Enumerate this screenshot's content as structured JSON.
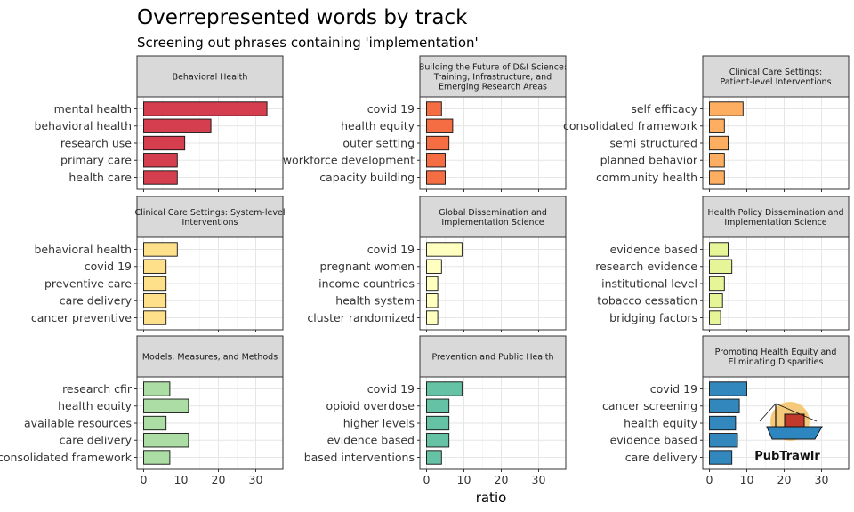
{
  "chart_data": {
    "type": "bar",
    "orientation": "horizontal",
    "title": "Overrepresented words by track",
    "subtitle": "Screening out phrases containing 'implementation'",
    "xlabel": "ratio",
    "xlim": [
      0,
      35
    ],
    "xticks": [
      0,
      10,
      20,
      30
    ],
    "grid": true,
    "facets": [
      {
        "name": "Behavioral Health",
        "color": "#d53e4f",
        "categories": [
          "mental health",
          "behavioral health",
          "research use",
          "primary care",
          "health care"
        ],
        "values": [
          33,
          18,
          11,
          9,
          9
        ]
      },
      {
        "name": "Building the Future of D&I Science: Training, Infrastructure, and Emerging Research Areas",
        "color": "#f46d43",
        "categories": [
          "covid 19",
          "health equity",
          "outer setting",
          "workforce development",
          "capacity building"
        ],
        "values": [
          4,
          7,
          6,
          5,
          5
        ]
      },
      {
        "name": "Clinical Care Settings: Patient-level Interventions",
        "color": "#fdae61",
        "categories": [
          "self efficacy",
          "consolidated framework",
          "semi structured",
          "planned behavior",
          "community health"
        ],
        "values": [
          9,
          4,
          5,
          4,
          4
        ]
      },
      {
        "name": "Clinical Care Settings: System-level Interventions",
        "color": "#fee08b",
        "categories": [
          "behavioral health",
          "covid 19",
          "preventive care",
          "care delivery",
          "cancer preventive"
        ],
        "values": [
          9,
          6,
          6,
          6,
          6
        ]
      },
      {
        "name": "Global Dissemination and Implementation Science",
        "color": "#ffffbf",
        "categories": [
          "covid 19",
          "pregnant women",
          "income countries",
          "health system",
          "cluster randomized"
        ],
        "values": [
          9.5,
          4,
          3,
          3,
          3
        ]
      },
      {
        "name": "Health Policy Dissemination and Implementation Science",
        "color": "#e6f598",
        "categories": [
          "evidence based",
          "research evidence",
          "institutional level",
          "tobacco cessation",
          "bridging factors"
        ],
        "values": [
          5,
          6,
          4,
          3.5,
          3
        ]
      },
      {
        "name": "Models, Measures, and Methods",
        "color": "#abdda4",
        "categories": [
          "research cfir",
          "health equity",
          "available resources",
          "care delivery",
          "consolidated framework"
        ],
        "values": [
          7,
          12,
          6,
          12,
          7
        ]
      },
      {
        "name": "Prevention and Public Health",
        "color": "#66c2a5",
        "categories": [
          "covid 19",
          "opioid overdose",
          "higher levels",
          "evidence based",
          "based interventions"
        ],
        "values": [
          9.5,
          6,
          6,
          6,
          4
        ]
      },
      {
        "name": "Promoting Health Equity and Eliminating Disparities",
        "color": "#3288bd",
        "categories": [
          "covid 19",
          "cancer screening",
          "health equity",
          "evidence based",
          "care delivery"
        ],
        "values": [
          10,
          8,
          7,
          7.5,
          6
        ]
      }
    ]
  },
  "logo": {
    "text": "PubTrawlr",
    "sun_color": "#f5c97a",
    "boat_color": "#c0392b",
    "hull_color": "#2e86c1"
  }
}
